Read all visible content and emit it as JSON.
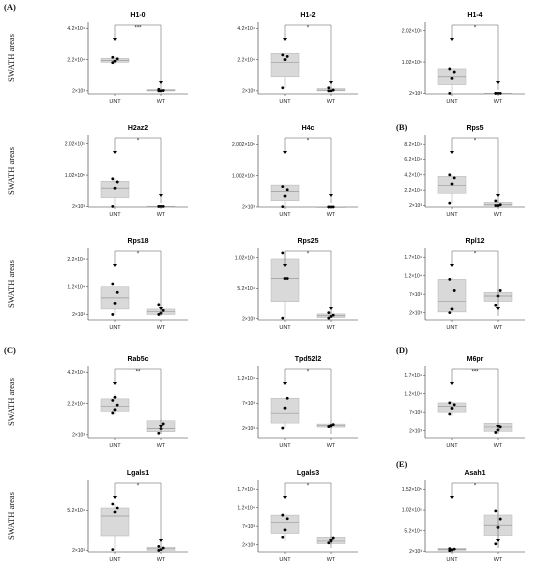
{
  "figure": {
    "y_axis_label": "SWATH areas",
    "section_labels": {
      "A": "(A)",
      "B": "(B)",
      "C": "(C)",
      "D": "(D)",
      "E": "(E)"
    }
  },
  "colors": {
    "box_fill": "#d9d9d9",
    "box_stroke": "#b5b5b5",
    "point": "#000000",
    "axis": "#333333",
    "bracket": "#555555"
  },
  "chart_data": [
    {
      "type": "box",
      "title": "H1-0",
      "categories": [
        "UNT",
        "WT"
      ],
      "significance": "***",
      "yticks": [
        "2×10³",
        "2.2×10⁴",
        "4.2×10⁴"
      ],
      "tick_values": [
        2000,
        22000,
        42000
      ],
      "ylim": [
        0,
        46000
      ],
      "groups": [
        {
          "name": "UNT",
          "box": {
            "min": 19000,
            "q1": 20200,
            "median": 21500,
            "q3": 22800,
            "max": 24000
          },
          "points": [
            20000,
            21000,
            22500,
            23500
          ]
        },
        {
          "name": "WT",
          "box": {
            "min": 2000,
            "q1": 2000,
            "median": 2100,
            "q3": 3000,
            "max": 3500
          },
          "points": [
            2000,
            2000,
            2200,
            3000
          ]
        }
      ]
    },
    {
      "type": "box",
      "title": "H1-2",
      "categories": [
        "UNT",
        "WT"
      ],
      "significance": "*",
      "yticks": [
        "2×10³",
        "2.2×10⁴",
        "4.2×10⁴"
      ],
      "tick_values": [
        2000,
        22000,
        42000
      ],
      "ylim": [
        0,
        46000
      ],
      "groups": [
        {
          "name": "UNT",
          "box": {
            "min": 4000,
            "q1": 11000,
            "median": 20000,
            "q3": 26000,
            "max": 26000
          },
          "points": [
            4000,
            22000,
            24000,
            25000
          ]
        },
        {
          "name": "WT",
          "box": {
            "min": 2000,
            "q1": 2000,
            "median": 2500,
            "q3": 3500,
            "max": 4000
          },
          "points": [
            2000,
            2000,
            2500,
            4000
          ]
        }
      ]
    },
    {
      "type": "box",
      "title": "H1-4",
      "categories": [
        "UNT",
        "WT"
      ],
      "significance": "*",
      "yticks": [
        "2×10³",
        "1.02×10⁵",
        "2.02×10⁵"
      ],
      "tick_values": [
        2000,
        102000,
        202000
      ],
      "ylim": [
        0,
        230000
      ],
      "groups": [
        {
          "name": "UNT",
          "box": {
            "min": 2000,
            "q1": 30000,
            "median": 55000,
            "q3": 80000,
            "max": 80000
          },
          "points": [
            2000,
            50000,
            70000,
            80000
          ]
        },
        {
          "name": "WT",
          "box": {
            "min": 2000,
            "q1": 2000,
            "median": 2000,
            "q3": 2500,
            "max": 3000
          },
          "points": [
            2000,
            2000,
            2000,
            2000
          ]
        }
      ]
    },
    {
      "type": "box",
      "title": "H2az2",
      "categories": [
        "UNT",
        "WT"
      ],
      "significance": "*",
      "yticks": [
        "2×10³",
        "1.02×10⁵",
        "2.02×10⁵"
      ],
      "tick_values": [
        2000,
        102000,
        202000
      ],
      "ylim": [
        0,
        230000
      ],
      "groups": [
        {
          "name": "UNT",
          "box": {
            "min": 2000,
            "q1": 30000,
            "median": 60000,
            "q3": 82000,
            "max": 90000
          },
          "points": [
            2000,
            60000,
            80000,
            90000
          ]
        },
        {
          "name": "WT",
          "box": {
            "min": 2000,
            "q1": 2000,
            "median": 2000,
            "q3": 2500,
            "max": 3000
          },
          "points": [
            2000,
            2000,
            2000,
            2000
          ]
        }
      ]
    },
    {
      "type": "box",
      "title": "H4c",
      "categories": [
        "UNT",
        "WT"
      ],
      "significance": "*",
      "yticks": [
        "2×10³",
        "1.002×10⁶",
        "2.002×10⁶"
      ],
      "tick_values": [
        2000,
        1002000,
        2002000
      ],
      "ylim": [
        0,
        2300000
      ],
      "groups": [
        {
          "name": "UNT",
          "box": {
            "min": 10000,
            "q1": 200000,
            "median": 500000,
            "q3": 700000,
            "max": 700000
          },
          "points": [
            10000,
            350000,
            550000,
            650000
          ]
        },
        {
          "name": "WT",
          "box": {
            "min": 2000,
            "q1": 2000,
            "median": 2000,
            "q3": 5000,
            "max": 8000
          },
          "points": [
            2000,
            2000,
            2000,
            2000
          ]
        }
      ]
    },
    {
      "type": "box",
      "title": "Rps5",
      "categories": [
        "UNT",
        "WT"
      ],
      "significance": "*",
      "yticks": [
        "2×10³",
        "2.2×10⁴",
        "4.2×10⁴",
        "6.2×10⁴",
        "8.2×10⁴"
      ],
      "tick_values": [
        2000,
        22000,
        42000,
        62000,
        82000
      ],
      "ylim": [
        0,
        94000
      ],
      "groups": [
        {
          "name": "UNT",
          "box": {
            "min": 5000,
            "q1": 18000,
            "median": 28000,
            "q3": 40000,
            "max": 42000
          },
          "points": [
            5000,
            30000,
            38000,
            42000
          ]
        },
        {
          "name": "WT",
          "box": {
            "min": 2000,
            "q1": 2000,
            "median": 3000,
            "q3": 6000,
            "max": 9000
          },
          "points": [
            2000,
            2000,
            3000,
            8000
          ]
        }
      ]
    },
    {
      "type": "box",
      "title": "Rps18",
      "categories": [
        "UNT",
        "WT"
      ],
      "significance": "*",
      "yticks": [
        "2×10³",
        "1.2×10⁴",
        "2.2×10⁴"
      ],
      "tick_values": [
        2000,
        12000,
        22000
      ],
      "ylim": [
        0,
        26000
      ],
      "groups": [
        {
          "name": "UNT",
          "box": {
            "min": 2000,
            "q1": 4000,
            "median": 8000,
            "q3": 12000,
            "max": 12000
          },
          "points": [
            2000,
            6000,
            10000,
            13000
          ]
        },
        {
          "name": "WT",
          "box": {
            "min": 2000,
            "q1": 2000,
            "median": 3000,
            "q3": 4000,
            "max": 5500
          },
          "points": [
            2000,
            2500,
            3500,
            5500
          ]
        }
      ]
    },
    {
      "type": "box",
      "title": "Rps25",
      "categories": [
        "UNT",
        "WT"
      ],
      "significance": "*",
      "yticks": [
        "2×10³",
        "5.2×10⁴",
        "1.02×10⁵"
      ],
      "tick_values": [
        2000,
        52000,
        102000
      ],
      "ylim": [
        0,
        118000
      ],
      "groups": [
        {
          "name": "UNT",
          "box": {
            "min": 3000,
            "q1": 30000,
            "median": 68000,
            "q3": 100000,
            "max": 110000
          },
          "points": [
            3000,
            68000,
            68000,
            110000
          ]
        },
        {
          "name": "WT",
          "box": {
            "min": 3000,
            "q1": 4000,
            "median": 7000,
            "q3": 10000,
            "max": 14000
          },
          "points": [
            3000,
            6000,
            8000,
            12000
          ]
        }
      ]
    },
    {
      "type": "box",
      "title": "Rpl12",
      "categories": [
        "UNT",
        "WT"
      ],
      "significance": "*",
      "yticks": [
        "2×10³",
        "7×10³",
        "1.2×10⁴",
        "1.7×10⁴"
      ],
      "tick_values": [
        2000,
        7000,
        12000,
        17000
      ],
      "ylim": [
        0,
        19500
      ],
      "groups": [
        {
          "name": "UNT",
          "box": {
            "min": 2000,
            "q1": 2200,
            "median": 5000,
            "q3": 11000,
            "max": 11500
          },
          "points": [
            2000,
            3000,
            8000,
            11000
          ]
        },
        {
          "name": "WT",
          "box": {
            "min": 4000,
            "q1": 5000,
            "median": 6500,
            "q3": 7500,
            "max": 8500
          },
          "points": [
            4000,
            6500,
            8000
          ]
        }
      ]
    },
    {
      "type": "box",
      "title": "Rab5c",
      "categories": [
        "UNT",
        "WT"
      ],
      "significance": "**",
      "yticks": [
        "2×10³",
        "2.2×10⁴",
        "4.2×10⁴"
      ],
      "tick_values": [
        2000,
        22000,
        42000
      ],
      "ylim": [
        0,
        46000
      ],
      "groups": [
        {
          "name": "UNT",
          "box": {
            "min": 15000,
            "q1": 17000,
            "median": 20000,
            "q3": 25000,
            "max": 28000
          },
          "points": [
            16000,
            18000,
            21000,
            24000,
            26000
          ]
        },
        {
          "name": "WT",
          "box": {
            "min": 3000,
            "q1": 4000,
            "median": 6000,
            "q3": 11000,
            "max": 12000
          },
          "points": [
            3000,
            6000,
            9000
          ]
        }
      ]
    },
    {
      "type": "box",
      "title": "Tpd52l2",
      "categories": [
        "UNT",
        "WT"
      ],
      "significance": "*",
      "yticks": [
        "2×10³",
        "7×10³",
        "1.2×10⁴"
      ],
      "tick_values": [
        2000,
        7000,
        12000
      ],
      "ylim": [
        0,
        14500
      ],
      "groups": [
        {
          "name": "UNT",
          "box": {
            "min": 2000,
            "q1": 3000,
            "median": 5000,
            "q3": 8000,
            "max": 8000
          },
          "points": [
            2000,
            6000,
            8000
          ]
        },
        {
          "name": "WT",
          "box": {
            "min": 2000,
            "q1": 2200,
            "median": 2500,
            "q3": 2800,
            "max": 3000
          },
          "points": [
            2300,
            2500,
            2700
          ]
        }
      ]
    },
    {
      "type": "box",
      "title": "M6pr",
      "categories": [
        "UNT",
        "WT"
      ],
      "significance": "***",
      "yticks": [
        "2×10³",
        "7×10³",
        "1.2×10⁴",
        "1.7×10⁴"
      ],
      "tick_values": [
        2000,
        7000,
        12000,
        17000
      ],
      "ylim": [
        0,
        19500
      ],
      "groups": [
        {
          "name": "UNT",
          "box": {
            "min": 6000,
            "q1": 7000,
            "median": 8500,
            "q3": 9500,
            "max": 10000
          },
          "points": [
            6500,
            8000,
            9000,
            9500
          ]
        },
        {
          "name": "WT",
          "box": {
            "min": 1500,
            "q1": 1800,
            "median": 3000,
            "q3": 4000,
            "max": 4500
          },
          "points": [
            1500,
            2200,
            3000
          ]
        }
      ]
    },
    {
      "type": "box",
      "title": "Lgals1",
      "categories": [
        "UNT",
        "WT"
      ],
      "significance": "*",
      "yticks": [
        "2×10³",
        "5.2×10⁴"
      ],
      "tick_values": [
        2000,
        52000
      ],
      "ylim": [
        0,
        90000
      ],
      "groups": [
        {
          "name": "UNT",
          "box": {
            "min": 2000,
            "q1": 20000,
            "median": 45000,
            "q3": 55000,
            "max": 60000
          },
          "points": [
            3000,
            50000,
            55000,
            60000
          ]
        },
        {
          "name": "WT",
          "box": {
            "min": 2000,
            "q1": 2000,
            "median": 4000,
            "q3": 6000,
            "max": 7000
          },
          "points": [
            2000,
            3000,
            5000,
            7000
          ]
        }
      ]
    },
    {
      "type": "box",
      "title": "Lgals3",
      "categories": [
        "UNT",
        "WT"
      ],
      "significance": "*",
      "yticks": [
        "2×10³",
        "7×10³",
        "1.2×10⁴",
        "1.7×10⁴"
      ],
      "tick_values": [
        2000,
        7000,
        12000,
        17000
      ],
      "ylim": [
        0,
        19500
      ],
      "groups": [
        {
          "name": "UNT",
          "box": {
            "min": 3000,
            "q1": 5000,
            "median": 8000,
            "q3": 10000,
            "max": 10000
          },
          "points": [
            4000,
            6000,
            9000,
            10000
          ]
        },
        {
          "name": "WT",
          "box": {
            "min": 2000,
            "q1": 2300,
            "median": 3000,
            "q3": 4000,
            "max": 4300
          },
          "points": [
            2500,
            3000,
            3800
          ]
        }
      ]
    },
    {
      "type": "box",
      "title": "Asah1",
      "categories": [
        "UNT",
        "WT"
      ],
      "significance": "*",
      "yticks": [
        "2×10³",
        "5.2×10⁴",
        "1.02×10⁵",
        "1.52×10⁵"
      ],
      "tick_values": [
        2000,
        52000,
        102000,
        152000
      ],
      "ylim": [
        0,
        175000
      ],
      "groups": [
        {
          "name": "UNT",
          "box": {
            "min": 2000,
            "q1": 4000,
            "median": 6000,
            "q3": 9000,
            "max": 10000
          },
          "points": [
            3000,
            5000,
            7000,
            8000
          ]
        },
        {
          "name": "WT",
          "box": {
            "min": 10000,
            "q1": 40000,
            "median": 65000,
            "q3": 90000,
            "max": 100000
          },
          "points": [
            20000,
            60000,
            80000,
            100000
          ]
        }
      ]
    }
  ]
}
